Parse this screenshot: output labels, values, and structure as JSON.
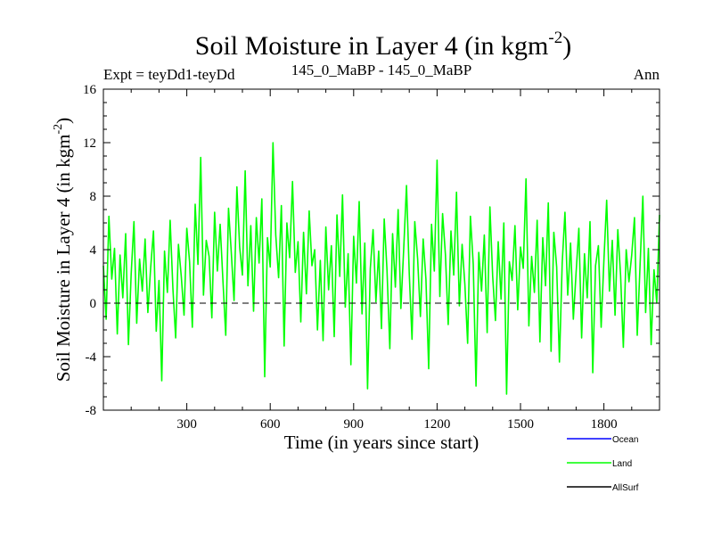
{
  "chart_data": {
    "type": "line",
    "title": "Soil Moisture in Layer 4 (in kgm",
    "title_sup": "-2",
    "title_end": ")",
    "subtitle_left": "Expt = teyDd1-teyDd",
    "subtitle_center": "145_0_MaBP - 145_0_MaBP",
    "subtitle_right": "Ann",
    "xlabel": "Time (in years since start)",
    "ylabel": "Soil Moisture in Layer 4 (in kgm",
    "ylabel_sup": "-2",
    "ylabel_end": ")",
    "xlim": [
      0,
      2000
    ],
    "ylim": [
      -8,
      16
    ],
    "xticks": [
      300,
      600,
      900,
      1200,
      1500,
      1800
    ],
    "yticks": [
      -8,
      -4,
      0,
      4,
      8,
      12,
      16
    ],
    "reference_line": 0,
    "legend": [
      {
        "name": "Ocean",
        "color": "#0000ff"
      },
      {
        "name": "Land",
        "color": "#00ff00"
      },
      {
        "name": "AllSurf",
        "color": "#000000"
      }
    ],
    "series": [
      {
        "name": "Land",
        "color": "#00ff00",
        "x_start": 0,
        "x_step": 10,
        "values": [
          2.8,
          -1.2,
          6.5,
          1.8,
          4.1,
          -2.3,
          3.6,
          0.4,
          5.2,
          -3.1,
          2.2,
          6.1,
          -1.5,
          3.3,
          0.9,
          4.8,
          -0.7,
          2.6,
          5.4,
          -2.1,
          1.7,
          -5.8,
          3.9,
          0.8,
          6.2,
          1.1,
          -2.6,
          4.4,
          2.0,
          -0.9,
          5.6,
          3.1,
          -1.8,
          7.4,
          2.9,
          10.9,
          0.6,
          4.7,
          3.5,
          -1.1,
          6.8,
          2.4,
          5.9,
          1.6,
          -2.4,
          7.1,
          3.8,
          0.2,
          8.7,
          4.2,
          2.1,
          9.9,
          1.3,
          5.8,
          -0.6,
          6.4,
          3.0,
          7.8,
          -5.5,
          4.9,
          2.7,
          12.0,
          5.1,
          1.9,
          7.3,
          -3.2,
          6.0,
          3.4,
          9.1,
          2.3,
          4.6,
          -1.4,
          5.3,
          0.7,
          6.9,
          2.8,
          4.0,
          -2.0,
          3.2,
          -2.8,
          5.7,
          1.0,
          4.3,
          -2.5,
          6.6,
          2.0,
          8.1,
          -0.3,
          3.7,
          -4.6,
          5.0,
          1.5,
          7.6,
          -0.8,
          4.5,
          -6.4,
          2.6,
          5.5,
          0.1,
          3.9,
          -1.9,
          6.3,
          2.5,
          -3.4,
          5.2,
          1.2,
          7.0,
          -0.4,
          4.1,
          8.8,
          2.2,
          -2.7,
          6.1,
          3.3,
          -1.0,
          4.8,
          1.8,
          -4.9,
          5.9,
          2.4,
          10.7,
          0.5,
          6.7,
          3.6,
          -1.6,
          5.4,
          2.1,
          8.3,
          -0.2,
          4.4,
          1.4,
          -3.0,
          6.5,
          2.9,
          -6.2,
          3.8,
          0.9,
          5.1,
          -2.2,
          7.2,
          2.0,
          -1.3,
          4.6,
          0.3,
          6.0,
          -6.8,
          3.1,
          1.7,
          5.8,
          -0.5,
          4.2,
          2.6,
          9.3,
          -1.7,
          3.5,
          0.8,
          6.2,
          -2.9,
          4.9,
          1.3,
          7.5,
          -3.6,
          5.3,
          2.7,
          -4.4,
          3.0,
          6.8,
          0.6,
          4.5,
          -1.2,
          2.3,
          5.6,
          -2.6,
          3.7,
          0.4,
          6.1,
          -5.2,
          2.8,
          4.3,
          -1.8,
          3.2,
          7.7,
          0.9,
          4.7,
          -0.9,
          5.5,
          2.1,
          -3.3,
          4.0,
          1.6,
          3.6,
          6.4,
          -2.4,
          2.9,
          8.0,
          -0.7,
          4.1,
          -3.1,
          2.5,
          0.0,
          6.6
        ]
      }
    ]
  }
}
